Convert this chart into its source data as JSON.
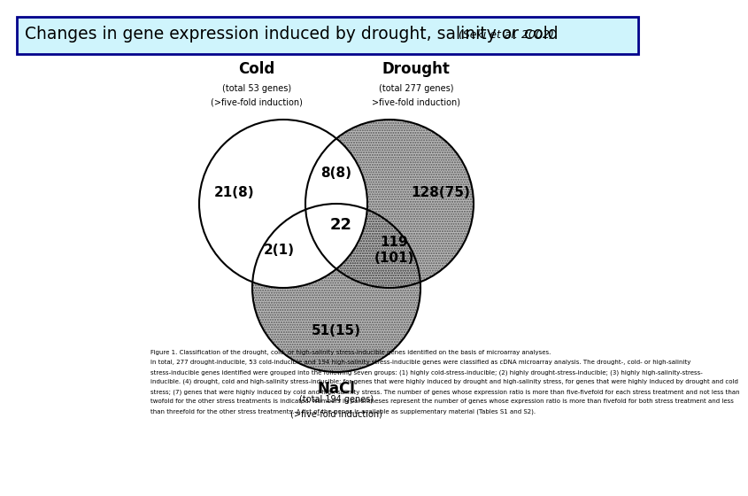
{
  "title_main": "Changes in gene expression induced by drought, salinity or cold ",
  "title_ref": "(Seki et al. 2002)",
  "title_bg": "#cff4fc",
  "title_border": "#00008B",
  "bg_color": "#ffffff",
  "cold_label": "Cold",
  "cold_sub1": "(total 53 genes)",
  "cold_sub2": "(>five-fold induction)",
  "drought_label": "Drought",
  "drought_sub1": "(total 277 genes)",
  "drought_sub2": ">five-fold induction)",
  "nacl_label": "NaCl",
  "nacl_sub1": "(total 194 genes)",
  "nacl_sub2": "(>five-fold induction)",
  "cold_only": "21(8)",
  "drought_only": "128(75)",
  "nacl_only": "51(15)",
  "cold_drought": "8(8)",
  "cold_nacl": "2(1)",
  "drought_nacl": "119\n(101)",
  "all_three": "22",
  "figure_caption_line1": "Figure 1. Classification of the drought, cold, or high-salinity stress-inducible genes identified on the basis of microarray analyses.",
  "figure_caption_line2": "In total, 277 drought-inducible, 53 cold-inducible and 194 high-salinity stress-inducible genes were classified as cDNA microarray analysis. The drought-, cold- or high-salinity",
  "figure_caption_line3": "stress-inducible genes identified were grouped into the following seven groups: (1) highly cold-stress-inducible; (2) highly drought-stress-inducible; (3) highly high-salinity-stress-",
  "figure_caption_line4": "inducible. (4) drought, cold and high-salinity stress-inducible; for genes that were highly induced by drought and high-salinity stress, for genes that were highly induced by drought and cold",
  "figure_caption_line5": "stress; (7) genes that were highly induced by cold and high-salinity stress. The number of genes whose expression ratio is more than five-fivefold for each stress treatment and not less than",
  "figure_caption_line6": "twofold for the other stress treatments is indicated. Numbers in parentheses represent the number of genes whose expression ratio is more than fivefold for both stress treatment and less",
  "figure_caption_line7": "than threefold for the other stress treatments. A list of the genes is available as supplementary material (Tables S1 and S2)."
}
